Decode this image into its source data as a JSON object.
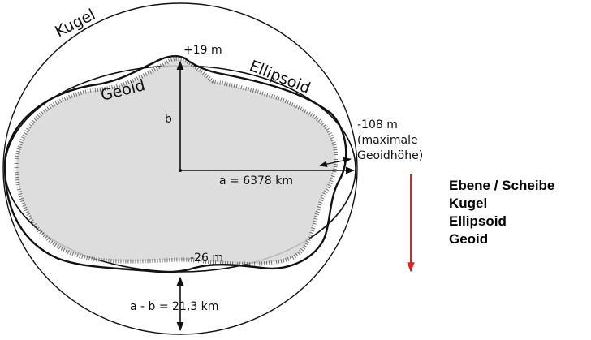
{
  "diagram": {
    "labels": {
      "kugel": "Kugel",
      "ellipsoid": "Ellipsoid",
      "geoid": "Geoid",
      "top_offset": "+19 m",
      "b": "b",
      "right_offset": "-108 m",
      "max_note_1": "(maximale",
      "max_note_2": "Geoidhöhe)",
      "a": "a = 6378 km",
      "bottom_offset": "-26 m",
      "a_minus_b": "a - b = 21,3 km"
    }
  },
  "legend_list": {
    "items": [
      "Ebene / Scheibe",
      "Kugel",
      "Ellipsoid",
      "Geoid"
    ],
    "arrow_color": "#e0201c"
  }
}
